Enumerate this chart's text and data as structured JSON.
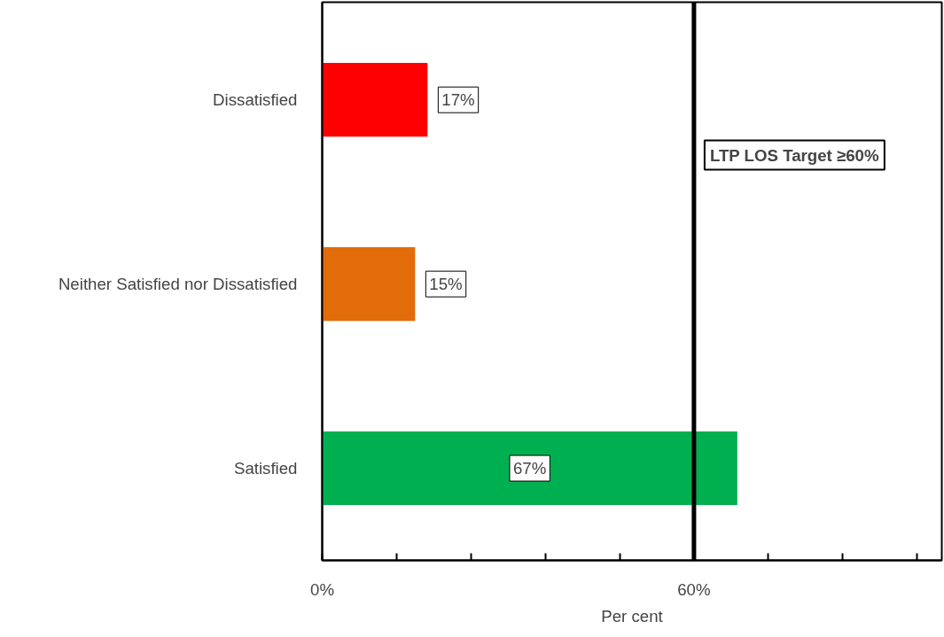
{
  "chart_data": {
    "type": "bar",
    "orientation": "horizontal",
    "xlabel": "Per cent",
    "categories": [
      "Dissatisfied",
      "Neither Satisfied nor Dissatisfied",
      "Satisfied"
    ],
    "values": [
      17,
      15,
      67
    ],
    "colors": [
      "#ff0000",
      "#e36c0a",
      "#00b050"
    ],
    "value_labels": [
      "17%",
      "15%",
      "67%"
    ],
    "xlim": [
      0,
      100
    ],
    "xticks": [
      {
        "value": 0,
        "label": "0%"
      },
      {
        "value": 12,
        "label": null
      },
      {
        "value": 24,
        "label": null
      },
      {
        "value": 36,
        "label": null
      },
      {
        "value": 48,
        "label": null
      },
      {
        "value": 60,
        "label": "60%"
      },
      {
        "value": 72,
        "label": null
      },
      {
        "value": 84,
        "label": null
      },
      {
        "value": 96,
        "label": null
      }
    ],
    "ref_lines": [
      {
        "axis": "x",
        "value": 60,
        "label": "LTP LOS Target ≥60%",
        "color": "#000000"
      }
    ],
    "grid": false
  }
}
